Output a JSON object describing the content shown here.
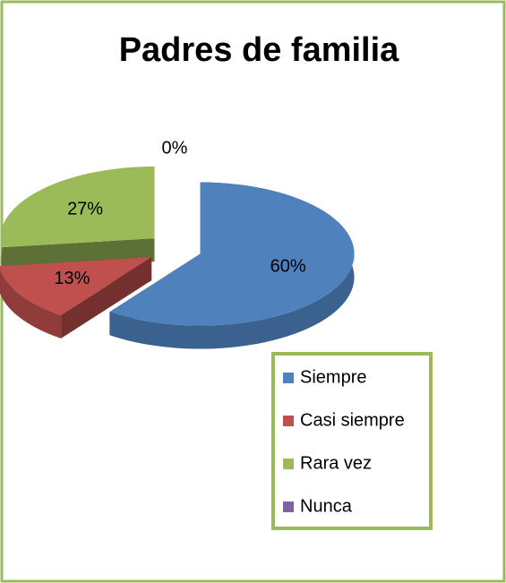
{
  "chart_data": {
    "type": "pie",
    "title": "Padres de familia",
    "categories": [
      "Siempre",
      "Casi siempre",
      "Rara vez",
      "Nunca"
    ],
    "values": [
      60,
      13,
      27,
      0
    ],
    "value_labels": [
      "60%",
      "13%",
      "27%",
      "0%"
    ],
    "colors": [
      "#4f81bd",
      "#c0504d",
      "#9bbb59",
      "#8064a2"
    ],
    "legend": "right"
  }
}
